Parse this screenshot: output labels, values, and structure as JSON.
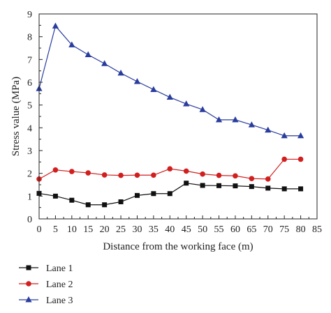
{
  "chart_data": {
    "type": "line",
    "title": "",
    "xlabel": "Distance from the working face (m)",
    "ylabel": "Stress value (MPa)",
    "xlim": [
      0,
      85
    ],
    "ylim": [
      0,
      9
    ],
    "x_ticks": [
      0,
      5,
      10,
      15,
      20,
      25,
      30,
      35,
      40,
      45,
      50,
      55,
      60,
      65,
      70,
      75,
      80,
      85
    ],
    "y_ticks": [
      0,
      1,
      2,
      3,
      4,
      5,
      6,
      7,
      8,
      9
    ],
    "grid": false,
    "legend_position": "bottom-left, below plot",
    "x": [
      0,
      5,
      10,
      15,
      20,
      25,
      30,
      35,
      40,
      45,
      50,
      55,
      60,
      65,
      70,
      75,
      80
    ],
    "series": [
      {
        "name": "Lane 1",
        "color": "#111111",
        "marker": "square",
        "values": [
          1.12,
          1.0,
          0.82,
          0.62,
          0.62,
          0.75,
          1.03,
          1.11,
          1.11,
          1.57,
          1.47,
          1.46,
          1.45,
          1.42,
          1.35,
          1.32,
          1.32
        ]
      },
      {
        "name": "Lane 2",
        "color": "#d11f1f",
        "marker": "circle",
        "values": [
          1.75,
          2.15,
          2.08,
          2.02,
          1.93,
          1.91,
          1.92,
          1.92,
          2.2,
          2.1,
          1.97,
          1.91,
          1.89,
          1.77,
          1.75,
          2.62,
          2.62
        ]
      },
      {
        "name": "Lane 3",
        "color": "#2a3d9e",
        "marker": "triangle",
        "values": [
          5.72,
          8.47,
          7.64,
          7.21,
          6.82,
          6.4,
          6.03,
          5.68,
          5.34,
          5.05,
          4.8,
          4.35,
          4.35,
          4.13,
          3.9,
          3.65,
          3.65
        ]
      }
    ]
  }
}
